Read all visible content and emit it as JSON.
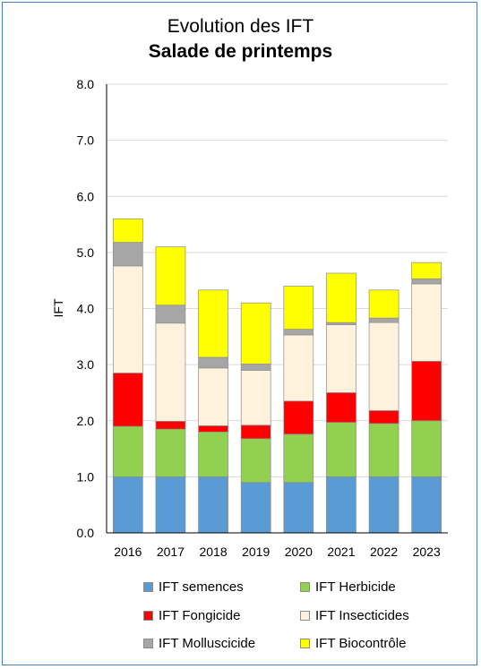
{
  "chart_data": {
    "type": "bar",
    "stacked": true,
    "title": "Evolution des IFT",
    "subtitle": "Salade de printemps",
    "xlabel": "",
    "ylabel": "IFT",
    "ylim": [
      0,
      8
    ],
    "yticks": [
      "0.0",
      "1.0",
      "2.0",
      "3.0",
      "4.0",
      "5.0",
      "6.0",
      "7.0",
      "8.0"
    ],
    "grid": true,
    "legend_position": "bottom",
    "categories": [
      "2016",
      "2017",
      "2018",
      "2019",
      "2020",
      "2021",
      "2022",
      "2023"
    ],
    "series": [
      {
        "name": "IFT semences",
        "color": "#5b9bd5",
        "values": [
          1.0,
          1.0,
          1.0,
          0.9,
          0.9,
          1.0,
          1.0,
          1.0
        ]
      },
      {
        "name": "IFT Herbicide",
        "color": "#92d050",
        "values": [
          0.9,
          0.85,
          0.8,
          0.78,
          0.86,
          0.97,
          0.95,
          1.0
        ]
      },
      {
        "name": "IFT Fongicide",
        "color": "#ff0000",
        "values": [
          0.95,
          0.14,
          0.11,
          0.24,
          0.59,
          0.53,
          0.23,
          1.06
        ]
      },
      {
        "name": "IFT Insecticides",
        "color": "#fff2dc",
        "values": [
          1.91,
          1.75,
          1.03,
          0.98,
          1.18,
          1.21,
          1.57,
          1.38
        ]
      },
      {
        "name": "IFT Molluscicide",
        "color": "#a6a6a6",
        "values": [
          0.42,
          0.32,
          0.19,
          0.11,
          0.1,
          0.04,
          0.08,
          0.09
        ]
      },
      {
        "name": "IFT Biocontrôle",
        "color": "#ffff00",
        "values": [
          0.42,
          1.04,
          1.2,
          1.09,
          0.77,
          0.88,
          0.5,
          0.29
        ]
      }
    ]
  }
}
